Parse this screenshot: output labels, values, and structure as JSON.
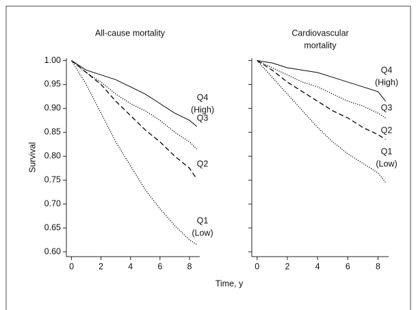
{
  "chart_data": [
    {
      "type": "line",
      "title": [
        "All-cause mortality"
      ],
      "x": [
        0,
        1,
        2,
        3,
        4,
        5,
        6,
        7,
        8,
        8.5
      ],
      "series": [
        {
          "name": "Q4",
          "sublabel": "(High)",
          "color": "#000000",
          "dash": "solid",
          "values": [
            1.0,
            0.98,
            0.97,
            0.96,
            0.945,
            0.93,
            0.91,
            0.89,
            0.875,
            0.862
          ]
        },
        {
          "name": "Q3",
          "color": "#000000",
          "dash": "dotted",
          "values": [
            1.0,
            0.975,
            0.955,
            0.93,
            0.91,
            0.895,
            0.875,
            0.85,
            0.83,
            0.815
          ]
        },
        {
          "name": "Q2",
          "color": "#000000",
          "dash": "dashed",
          "values": [
            1.0,
            0.975,
            0.95,
            0.915,
            0.885,
            0.855,
            0.83,
            0.8,
            0.775,
            0.752
          ]
        },
        {
          "name": "Q1",
          "sublabel": "(Low)",
          "color": "#000000",
          "dash": "dotted",
          "values": [
            1.0,
            0.95,
            0.89,
            0.83,
            0.78,
            0.73,
            0.69,
            0.655,
            0.625,
            0.615
          ]
        }
      ],
      "xlim": [
        -0.35,
        8.7
      ],
      "xticks": [
        0,
        2,
        4,
        6,
        8
      ],
      "ylim": [
        0.59,
        1.005
      ],
      "yticks": [
        {
          "value": 1,
          "label": "1.00"
        },
        0.95,
        {
          "value": 0.9,
          "label": "0.90"
        },
        0.85,
        {
          "value": 0.8,
          "label": "0.80"
        },
        0.75,
        {
          "value": 0.7,
          "label": "0.70"
        },
        0.65,
        {
          "value": 0.6,
          "label": "0.60"
        }
      ],
      "show_ytick_labels": true
    },
    {
      "type": "line",
      "title": [
        "Cardiovascular",
        "mortality"
      ],
      "x": [
        0,
        1,
        2,
        3,
        4,
        5,
        6,
        7,
        8,
        8.5
      ],
      "series": [
        {
          "name": "Q4",
          "sublabel": "(High)",
          "color": "#000000",
          "dash": "solid",
          "values": [
            1.0,
            0.995,
            0.985,
            0.98,
            0.975,
            0.965,
            0.955,
            0.945,
            0.935,
            0.915
          ]
        },
        {
          "name": "Q3",
          "color": "#000000",
          "dash": "dotted",
          "values": [
            1.0,
            0.985,
            0.97,
            0.955,
            0.945,
            0.93,
            0.915,
            0.905,
            0.89,
            0.88
          ]
        },
        {
          "name": "Q2",
          "color": "#000000",
          "dash": "dashed",
          "values": [
            1.0,
            0.98,
            0.955,
            0.935,
            0.915,
            0.895,
            0.88,
            0.86,
            0.845,
            0.835
          ]
        },
        {
          "name": "Q1",
          "sublabel": "(Low)",
          "color": "#000000",
          "dash": "dotted",
          "values": [
            1.0,
            0.965,
            0.93,
            0.895,
            0.86,
            0.83,
            0.805,
            0.785,
            0.765,
            0.745
          ]
        }
      ],
      "xlim": [
        -0.35,
        8.7
      ],
      "xticks": [
        0,
        2,
        4,
        6,
        8
      ],
      "ylim": [
        0.59,
        1.005
      ],
      "yticks": [
        1,
        0.95,
        0.9,
        0.85,
        0.8,
        0.75,
        0.7,
        0.65,
        0.6
      ],
      "show_ytick_labels": false
    }
  ],
  "xlabel": "Time, y",
  "ylabel": "Survival"
}
